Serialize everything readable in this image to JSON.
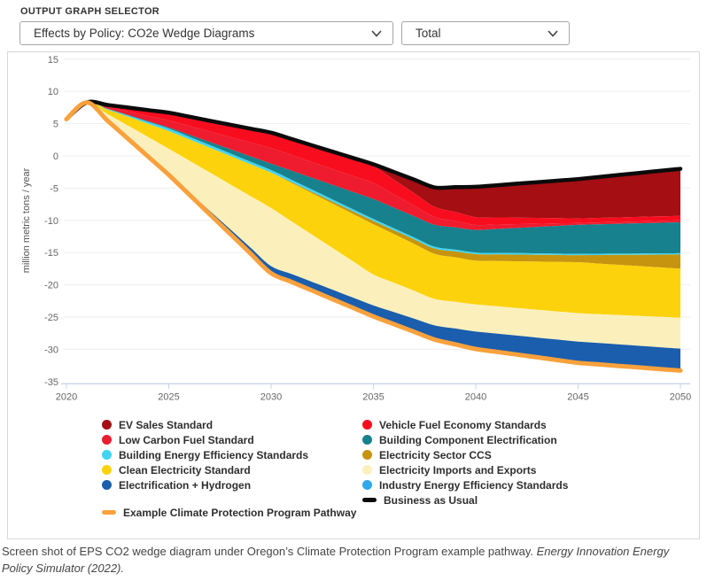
{
  "header": {
    "title": "OUTPUT GRAPH SELECTOR"
  },
  "selectors": {
    "graph_type": {
      "value": "Effects by Policy: CO2e Wedge Diagrams"
    },
    "scope": {
      "value": "Total"
    }
  },
  "caption": {
    "text": "Screen shot of EPS CO2 wedge diagram under Oregon’s Climate Protection Program example pathway. ",
    "source": "Energy Innovation Energy Policy Simulator (2022)."
  },
  "chart_data": {
    "type": "area",
    "title": "",
    "xlabel": "",
    "ylabel": "million metric tons / year",
    "ylim": [
      -35,
      15
    ],
    "yticks": [
      15,
      10,
      5,
      0,
      -5,
      -10,
      -15,
      -20,
      -25,
      -30,
      -35
    ],
    "xticks": [
      2020,
      2025,
      2030,
      2035,
      2040,
      2045,
      2050
    ],
    "grid": "horizontal",
    "legend_position": "bottom",
    "x": [
      2020,
      2021,
      2025,
      2030,
      2035,
      2038,
      2040,
      2045,
      2050
    ],
    "bau": {
      "name": "Business as Usual",
      "color": "#0b0b0b",
      "values": [
        5.7,
        8.3,
        6.7,
        3.6,
        -1.3,
        -4.9,
        -4.8,
        -3.6,
        -2.0
      ]
    },
    "series": [
      {
        "name": "EV Sales Standard",
        "color": "#A50E13",
        "values": [
          0,
          0,
          0,
          0,
          0.3,
          3.0,
          4.7,
          6.1,
          7.3
        ]
      },
      {
        "name": "Vehicle Fuel Economy Standards",
        "color": "#F80D1F",
        "values": [
          0,
          0,
          1.2,
          2.4,
          2.6,
          1.6,
          1.2,
          0.7,
          0.7
        ]
      },
      {
        "name": "Low Carbon Fuel Standard",
        "color": "#EE1C2E",
        "values": [
          0,
          0,
          1.1,
          2.4,
          2.5,
          1.2,
          0.8,
          0.3,
          0.3
        ]
      },
      {
        "name": "Building Component Electrification",
        "color": "#17818D",
        "values": [
          0,
          0,
          0.15,
          1.0,
          3.1,
          3.4,
          3.5,
          4.5,
          4.8
        ]
      },
      {
        "name": "Building Energy Efficiency Standards",
        "color": "#3FD5F2",
        "values": [
          0,
          0,
          0.4,
          0.4,
          0.3,
          0.3,
          0.25,
          0.2,
          0.2
        ]
      },
      {
        "name": "Electricity Sector CCS",
        "color": "#C6940F",
        "values": [
          0,
          0,
          0,
          0,
          0.5,
          0.8,
          1.0,
          1.1,
          2.2
        ]
      },
      {
        "name": "Clean Electricity Standard",
        "color": "#FCD20C",
        "values": [
          0,
          0,
          2.75,
          5.5,
          7.8,
          7.0,
          6.8,
          7.9,
          7.6
        ]
      },
      {
        "name": "Electricity Imports and Exports",
        "color": "#FBF0BC",
        "values": [
          0,
          0,
          3.9,
          9.0,
          4.8,
          4.1,
          4.2,
          4.4,
          4.8
        ]
      },
      {
        "name": "Industry Energy Efficiency Standards",
        "color": "#2FA9EE",
        "values": [
          0,
          0,
          0,
          0,
          0,
          0,
          0,
          0,
          0
        ]
      },
      {
        "name": "Electrification + Hydrogen",
        "color": "#1A5EAD",
        "values": [
          0,
          0,
          0.15,
          1.1,
          1.7,
          2.2,
          2.7,
          3.3,
          3.4
        ]
      }
    ],
    "pathway": {
      "name": "Example Climate Protection Program Pathway",
      "color": "#F9A13C",
      "values": [
        5.7,
        8.3,
        -2.95,
        -18.2,
        -24.9,
        -28.5,
        -29.95,
        -32.1,
        -33.3
      ]
    }
  },
  "legend": {
    "columns": [
      [
        {
          "label": "EV Sales Standard",
          "color": "#A50E13",
          "swatch": "dot"
        },
        {
          "label": "Low Carbon Fuel Standard",
          "color": "#EE1C2E",
          "swatch": "dot"
        },
        {
          "label": "Building Energy Efficiency Standards",
          "color": "#3FD5F2",
          "swatch": "dot"
        },
        {
          "label": "Clean Electricity Standard",
          "color": "#FCD20C",
          "swatch": "dot"
        },
        {
          "label": "Electrification + Hydrogen",
          "color": "#1A5EAD",
          "swatch": "dot"
        }
      ],
      [
        {
          "label": "Vehicle Fuel Economy Standards",
          "color": "#F80D1F",
          "swatch": "dot"
        },
        {
          "label": "Building Component Electrification",
          "color": "#17818D",
          "swatch": "dot"
        },
        {
          "label": "Electricity Sector CCS",
          "color": "#C6940F",
          "swatch": "dot"
        },
        {
          "label": "Electricity Imports and Exports",
          "color": "#FBF0BC",
          "swatch": "dot"
        },
        {
          "label": "Industry Energy Efficiency Standards",
          "color": "#2FA9EE",
          "swatch": "dot"
        },
        {
          "label": "Business as Usual",
          "color": "#0b0b0b",
          "swatch": "line"
        }
      ]
    ],
    "pathway": {
      "label": "Example Climate Protection Program Pathway",
      "color": "#F9A13C",
      "swatch": "line"
    }
  }
}
